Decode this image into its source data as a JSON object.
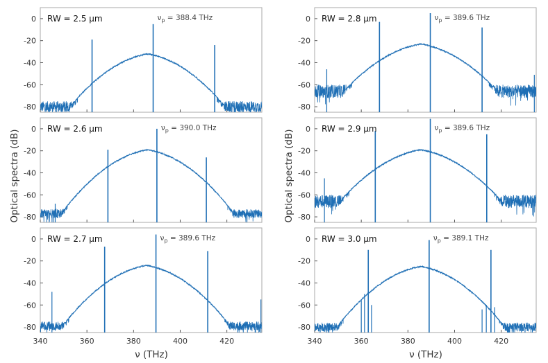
{
  "y_axis_label": "Optical spectra (dB)",
  "chart_data": [
    {
      "type": "line",
      "label": "RW = 2.5 μm",
      "pump": "388.4 THz",
      "row": 0,
      "col": 0,
      "xlim": [
        340,
        435
      ],
      "ylim": [
        -85,
        10
      ],
      "yticks": [
        0,
        -20,
        -40,
        -60,
        -80
      ],
      "envelope": {
        "center": 386,
        "peak": -32,
        "width": 7.5
      },
      "floor": -80,
      "floor_noise": 5,
      "floor_left": 340,
      "floor_right": 435,
      "floor_sigma": 14,
      "floor_plateau": -78,
      "lines": [
        {
          "x": 362.2,
          "y": -19
        },
        {
          "x": 388.4,
          "y": -5
        },
        {
          "x": 414.8,
          "y": -24
        }
      ],
      "small_lines": []
    },
    {
      "type": "line",
      "label": "RW = 2.8 μm",
      "pump": "389.6 THz",
      "row": 0,
      "col": 1,
      "xlim": [
        340,
        435
      ],
      "ylim": [
        -85,
        10
      ],
      "yticks": [
        0,
        -20,
        -40,
        -60,
        -80
      ],
      "envelope": {
        "center": 385.5,
        "peak": -23,
        "width": 8
      },
      "floor": -66,
      "floor_noise": 6,
      "floor_left": 340,
      "floor_right": 435,
      "floor_sigma": 13,
      "floor_plateau": -70,
      "lines": [
        {
          "x": 367.8,
          "y": -3
        },
        {
          "x": 389.6,
          "y": 5
        },
        {
          "x": 411.8,
          "y": -8
        }
      ],
      "small_lines": [
        {
          "x": 345.2,
          "y": -46
        },
        {
          "x": 434.2,
          "y": -51
        }
      ]
    },
    {
      "type": "line",
      "label": "RW = 2.6 μm",
      "pump": "390.0 THz",
      "row": 1,
      "col": 0,
      "xlim": [
        340,
        435
      ],
      "ylim": [
        -85,
        10
      ],
      "yticks": [
        0,
        -20,
        -40,
        -60,
        -80
      ],
      "envelope": {
        "center": 386,
        "peak": -19,
        "width": 7.5
      },
      "floor": -77,
      "floor_noise": 4,
      "floor_left": 340,
      "floor_right": 435,
      "floor_sigma": 14,
      "floor_plateau": -76,
      "lines": [
        {
          "x": 369,
          "y": -19
        },
        {
          "x": 390,
          "y": 0
        },
        {
          "x": 411.2,
          "y": -26
        }
      ],
      "small_lines": [
        {
          "x": 346.4,
          "y": -68
        }
      ]
    },
    {
      "type": "line",
      "label": "RW = 2.9 μm",
      "pump": "389.6 THz",
      "row": 1,
      "col": 1,
      "xlim": [
        340,
        435
      ],
      "ylim": [
        -85,
        10
      ],
      "yticks": [
        0,
        -20,
        -40,
        -60,
        -80
      ],
      "envelope": {
        "center": 385.5,
        "peak": -19,
        "width": 8
      },
      "floor": -66,
      "floor_noise": 6,
      "floor_left": 340,
      "floor_right": 435,
      "floor_sigma": 13,
      "floor_plateau": -70,
      "lines": [
        {
          "x": 366,
          "y": -2
        },
        {
          "x": 389.6,
          "y": 9
        },
        {
          "x": 413.8,
          "y": -5
        }
      ],
      "small_lines": [
        {
          "x": 344.2,
          "y": -45
        }
      ]
    },
    {
      "type": "line",
      "label": "RW = 2.7 μm",
      "pump": "389.6 THz",
      "row": 2,
      "col": 0,
      "xlim": [
        340,
        435
      ],
      "ylim": [
        -85,
        10
      ],
      "yticks": [
        0,
        -20,
        -40,
        -60,
        -80
      ],
      "envelope": {
        "center": 385.5,
        "peak": -24,
        "width": 7.5
      },
      "floor": -79,
      "floor_noise": 4,
      "floor_left": 340,
      "floor_right": 435,
      "floor_sigma": 14,
      "floor_plateau": -77,
      "lines": [
        {
          "x": 367.6,
          "y": -7
        },
        {
          "x": 389.6,
          "y": 4
        },
        {
          "x": 411.8,
          "y": -11
        }
      ],
      "small_lines": [
        {
          "x": 345,
          "y": -48
        },
        {
          "x": 434.6,
          "y": -55
        }
      ]
    },
    {
      "type": "line",
      "label": "RW = 3.0 μm",
      "pump": "389.1 THz",
      "row": 2,
      "col": 1,
      "xlim": [
        340,
        435
      ],
      "ylim": [
        -85,
        10
      ],
      "yticks": [
        0,
        -20,
        -40,
        -60,
        -80
      ],
      "envelope": {
        "center": 385.5,
        "peak": -25,
        "width": 7.5
      },
      "floor": -80,
      "floor_noise": 4,
      "floor_left": 340,
      "floor_right": 435,
      "floor_sigma": 14,
      "floor_plateau": -78,
      "lines": [
        {
          "x": 363,
          "y": -10
        },
        {
          "x": 389.1,
          "y": -1
        },
        {
          "x": 415.6,
          "y": -10
        }
      ],
      "small_lines": [
        {
          "x": 360,
          "y": -55
        },
        {
          "x": 361.4,
          "y": -50
        },
        {
          "x": 364.4,
          "y": -60
        },
        {
          "x": 411.8,
          "y": -64
        },
        {
          "x": 413.6,
          "y": -60
        },
        {
          "x": 417.2,
          "y": -62
        }
      ]
    }
  ],
  "x_axis": {
    "label": "ν (THz)",
    "ticks": [
      340,
      360,
      380,
      400,
      420
    ]
  }
}
